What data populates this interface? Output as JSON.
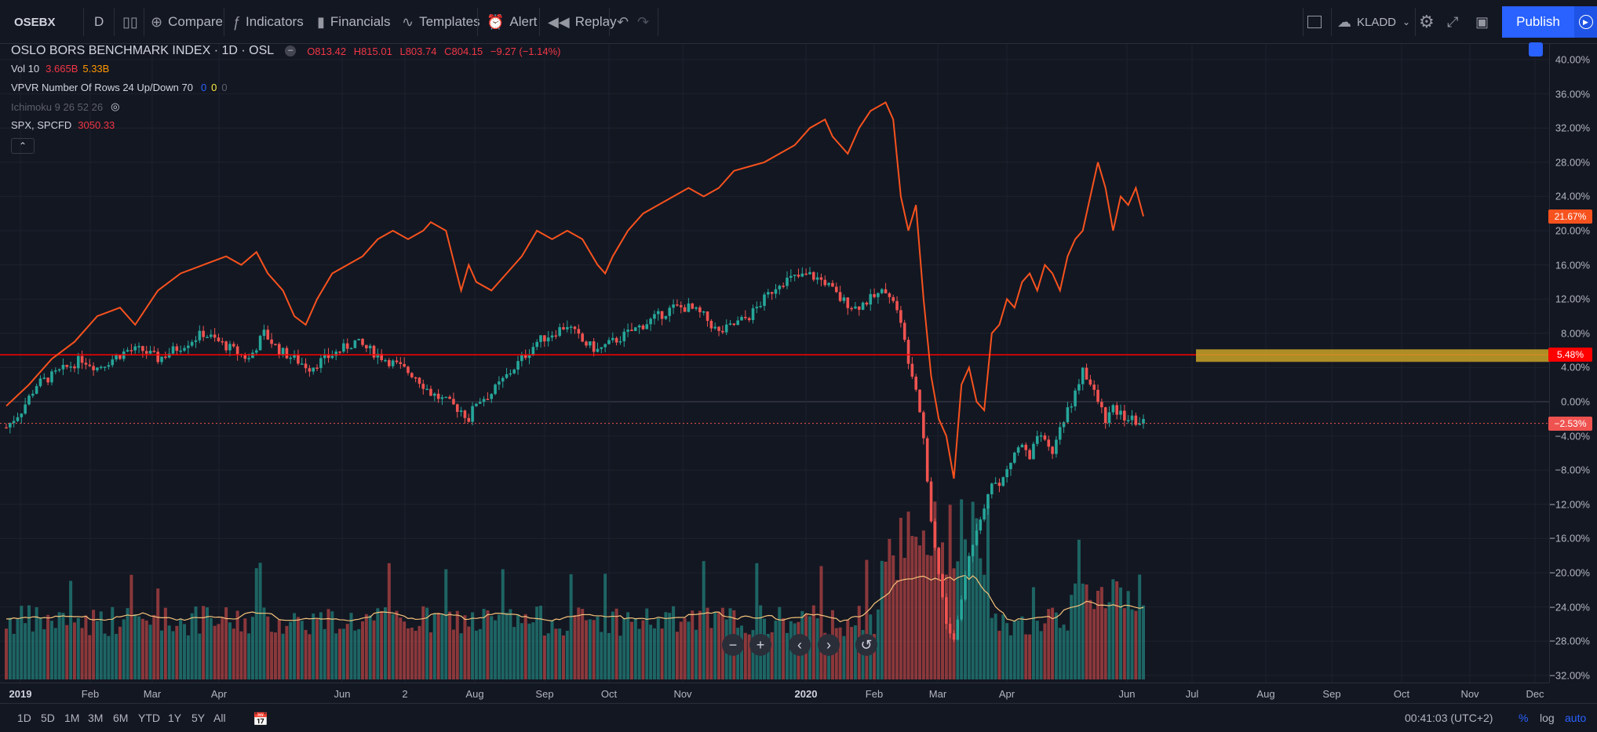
{
  "toolbar": {
    "symbol": "OSEBX",
    "interval": "D",
    "compare": "Compare",
    "indicators": "Indicators",
    "financials": "Financials",
    "templates": "Templates",
    "alert": "Alert",
    "replay": "Replay",
    "layout_name": "KLADD",
    "publish": "Publish"
  },
  "legend": {
    "main_title": "OSLO BORS BENCHMARK INDEX · 1D · OSL",
    "o": "O813.42",
    "h": "H815.01",
    "l": "L803.74",
    "c": "C804.15",
    "chg": "−9.27 (−1.14%)",
    "vol_label": "Vol 10",
    "vol_v1": "3.665B",
    "vol_v2": "5.33B",
    "vpvr_label": "VPVR Number Of Rows 24 Up/Down 70",
    "vpvr_v1": "0",
    "vpvr_v2": "0",
    "vpvr_v3": "0",
    "ichimoku_label": "Ichimoku 9 26 52 26",
    "spx_label": "SPX, SPCFD",
    "spx_value": "3050.33"
  },
  "y_axis": {
    "labels": [
      "40.00%",
      "36.00%",
      "32.00%",
      "28.00%",
      "24.00%",
      "20.00%",
      "16.00%",
      "12.00%",
      "8.00%",
      "4.00%",
      "0.00%",
      "−4.00%",
      "−8.00%",
      "−12.00%",
      "−16.00%",
      "−20.00%",
      "−24.00%",
      "−28.00%",
      "−32.00%"
    ],
    "badge_spx": "21.67%",
    "badge_hline": "5.48%",
    "badge_last": "−2.53%"
  },
  "x_axis": {
    "labels": [
      "2019",
      "Feb",
      "Mar",
      "Apr",
      "Jun",
      "2",
      "Aug",
      "Sep",
      "Oct",
      "Nov",
      "2020",
      "Feb",
      "Mar",
      "Apr",
      "Jun",
      "Jul",
      "Aug",
      "Sep",
      "Oct",
      "Nov",
      "Dec"
    ]
  },
  "bottom": {
    "ranges": [
      "1D",
      "5D",
      "1M",
      "3M",
      "6M",
      "YTD",
      "1Y",
      "5Y",
      "All"
    ],
    "clock": "00:41:03 (UTC+2)",
    "pct": "%",
    "log": "log",
    "auto": "auto"
  },
  "colors": {
    "background": "#131722",
    "spx_line": "#f7521e",
    "up_candle": "#26a69a",
    "down_candle": "#ef5350",
    "hline": "#ff0000",
    "zone": "#c9a227",
    "accent": "#2962ff"
  },
  "chart_data": {
    "type": "line",
    "scale": "percent",
    "ylim": [
      -33,
      42
    ],
    "x_ticks": [
      "2019",
      "Feb",
      "Mar",
      "Apr",
      "Jun",
      "2",
      "Aug",
      "Sep",
      "Oct",
      "Nov",
      "2020",
      "Feb",
      "Mar",
      "Apr",
      "Jun",
      "Jul",
      "Aug",
      "Sep",
      "Oct",
      "Nov",
      "Dec"
    ],
    "grid": true,
    "hline_percent": 5.48,
    "spx_path": [
      [
        0,
        -0.5
      ],
      [
        30,
        2
      ],
      [
        60,
        5
      ],
      [
        90,
        7
      ],
      [
        120,
        10
      ],
      [
        150,
        11
      ],
      [
        170,
        9
      ],
      [
        200,
        13
      ],
      [
        230,
        15
      ],
      [
        260,
        16
      ],
      [
        290,
        17
      ],
      [
        310,
        16
      ],
      [
        330,
        17.5
      ],
      [
        345,
        15
      ],
      [
        365,
        13
      ],
      [
        380,
        10
      ],
      [
        395,
        9
      ],
      [
        410,
        12
      ],
      [
        430,
        15
      ],
      [
        450,
        16
      ],
      [
        470,
        17
      ],
      [
        490,
        19
      ],
      [
        510,
        20
      ],
      [
        530,
        19
      ],
      [
        550,
        20
      ],
      [
        560,
        21
      ],
      [
        580,
        20
      ],
      [
        600,
        13
      ],
      [
        610,
        16
      ],
      [
        620,
        14
      ],
      [
        640,
        13
      ],
      [
        660,
        15
      ],
      [
        680,
        17
      ],
      [
        700,
        20
      ],
      [
        720,
        19
      ],
      [
        740,
        20
      ],
      [
        760,
        19
      ],
      [
        780,
        16
      ],
      [
        790,
        15
      ],
      [
        800,
        17
      ],
      [
        820,
        20
      ],
      [
        840,
        22
      ],
      [
        860,
        23
      ],
      [
        880,
        24
      ],
      [
        900,
        25
      ],
      [
        920,
        24
      ],
      [
        940,
        25
      ],
      [
        960,
        27
      ],
      [
        980,
        27.5
      ],
      [
        1000,
        28
      ],
      [
        1020,
        29
      ],
      [
        1040,
        30
      ],
      [
        1060,
        32
      ],
      [
        1080,
        33
      ],
      [
        1090,
        31
      ],
      [
        1100,
        30
      ],
      [
        1110,
        29
      ],
      [
        1125,
        32
      ],
      [
        1140,
        34
      ],
      [
        1160,
        35
      ],
      [
        1170,
        33
      ],
      [
        1180,
        24
      ],
      [
        1190,
        20
      ],
      [
        1200,
        23
      ],
      [
        1210,
        12
      ],
      [
        1220,
        3
      ],
      [
        1230,
        -2
      ],
      [
        1240,
        -4
      ],
      [
        1250,
        -9
      ],
      [
        1260,
        2
      ],
      [
        1270,
        4
      ],
      [
        1280,
        0
      ],
      [
        1290,
        -1
      ],
      [
        1300,
        8
      ],
      [
        1310,
        9
      ],
      [
        1320,
        12
      ],
      [
        1330,
        11
      ],
      [
        1340,
        14
      ],
      [
        1350,
        15
      ],
      [
        1360,
        13
      ],
      [
        1370,
        16
      ],
      [
        1380,
        15
      ],
      [
        1390,
        13
      ],
      [
        1400,
        17
      ],
      [
        1410,
        19
      ],
      [
        1420,
        20
      ],
      [
        1430,
        24
      ],
      [
        1440,
        28
      ],
      [
        1450,
        25
      ],
      [
        1460,
        20
      ],
      [
        1470,
        24
      ],
      [
        1480,
        23
      ],
      [
        1490,
        25
      ],
      [
        1500,
        21.67
      ]
    ],
    "osebx_path": [
      [
        0,
        -3
      ],
      [
        20,
        -1
      ],
      [
        40,
        2
      ],
      [
        60,
        3
      ],
      [
        80,
        4
      ],
      [
        100,
        5
      ],
      [
        120,
        4
      ],
      [
        140,
        5
      ],
      [
        160,
        6
      ],
      [
        180,
        6
      ],
      [
        200,
        5
      ],
      [
        220,
        6
      ],
      [
        240,
        7
      ],
      [
        260,
        8
      ],
      [
        280,
        7
      ],
      [
        300,
        6
      ],
      [
        320,
        5
      ],
      [
        340,
        8
      ],
      [
        360,
        6
      ],
      [
        380,
        5
      ],
      [
        400,
        4
      ],
      [
        420,
        5
      ],
      [
        440,
        6
      ],
      [
        460,
        7
      ],
      [
        480,
        6
      ],
      [
        500,
        5
      ],
      [
        520,
        4
      ],
      [
        540,
        3
      ],
      [
        560,
        1
      ],
      [
        580,
        0
      ],
      [
        600,
        -1
      ],
      [
        610,
        -2
      ],
      [
        620,
        0
      ],
      [
        640,
        1
      ],
      [
        660,
        3
      ],
      [
        680,
        5
      ],
      [
        700,
        7
      ],
      [
        720,
        8
      ],
      [
        740,
        9
      ],
      [
        760,
        7
      ],
      [
        780,
        6
      ],
      [
        800,
        7
      ],
      [
        820,
        8
      ],
      [
        840,
        9
      ],
      [
        860,
        10
      ],
      [
        880,
        11
      ],
      [
        900,
        11
      ],
      [
        920,
        10
      ],
      [
        940,
        8
      ],
      [
        960,
        9
      ],
      [
        980,
        10
      ],
      [
        1000,
        12
      ],
      [
        1020,
        14
      ],
      [
        1040,
        14.5
      ],
      [
        1060,
        14.8
      ],
      [
        1080,
        14
      ],
      [
        1100,
        12
      ],
      [
        1120,
        11
      ],
      [
        1140,
        12
      ],
      [
        1160,
        13
      ],
      [
        1170,
        12
      ],
      [
        1180,
        9
      ],
      [
        1190,
        5
      ],
      [
        1200,
        2
      ],
      [
        1210,
        -4
      ],
      [
        1220,
        -14
      ],
      [
        1230,
        -20
      ],
      [
        1240,
        -26
      ],
      [
        1250,
        -28
      ],
      [
        1260,
        -23
      ],
      [
        1270,
        -18
      ],
      [
        1280,
        -15
      ],
      [
        1290,
        -12
      ],
      [
        1300,
        -9
      ],
      [
        1310,
        -10
      ],
      [
        1320,
        -8
      ],
      [
        1330,
        -6
      ],
      [
        1340,
        -5
      ],
      [
        1350,
        -7
      ],
      [
        1360,
        -4
      ],
      [
        1370,
        -5
      ],
      [
        1380,
        -6
      ],
      [
        1390,
        -3
      ],
      [
        1400,
        -1
      ],
      [
        1410,
        1
      ],
      [
        1420,
        4
      ],
      [
        1430,
        2
      ],
      [
        1440,
        0
      ],
      [
        1450,
        -2
      ],
      [
        1460,
        -1
      ],
      [
        1470,
        -1.5
      ],
      [
        1480,
        -2
      ],
      [
        1490,
        -2.3
      ],
      [
        1500,
        -2.53
      ]
    ]
  }
}
